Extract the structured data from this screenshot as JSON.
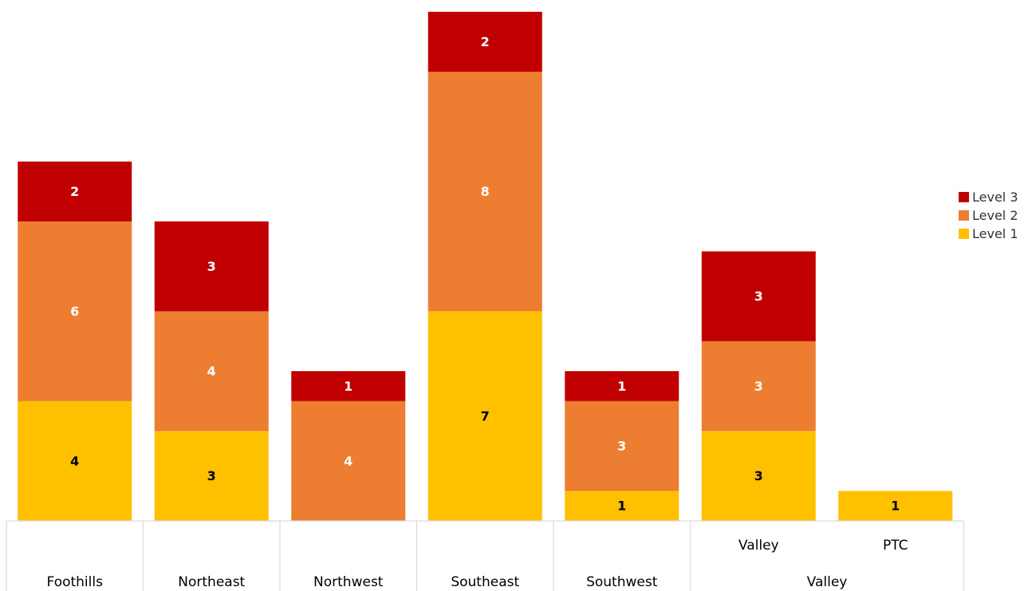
{
  "chart_data": {
    "type": "bar",
    "stacked": true,
    "title": "",
    "xlabel": "",
    "ylabel": "",
    "categories": [
      "Foothills",
      "Northeast",
      "Northwest",
      "Southeast",
      "Southwest",
      "Valley",
      "PTC"
    ],
    "group_labels": [
      {
        "label": "Foothills",
        "categories": [
          "Foothills"
        ]
      },
      {
        "label": "Northeast",
        "categories": [
          "Northeast"
        ]
      },
      {
        "label": "Northwest",
        "categories": [
          "Northwest"
        ]
      },
      {
        "label": "Southeast",
        "categories": [
          "Southeast"
        ]
      },
      {
        "label": "Southwest",
        "categories": [
          "Southwest"
        ]
      },
      {
        "label": "Valley",
        "categories": [
          "Valley",
          "PTC"
        ]
      }
    ],
    "series": [
      {
        "name": "Level 1",
        "color": "#FFC000",
        "label_color": "#000000",
        "values": [
          4,
          3,
          0,
          7,
          1,
          3,
          1
        ]
      },
      {
        "name": "Level 2",
        "color": "#ED7D31",
        "label_color": "#FFFFFF",
        "values": [
          6,
          4,
          4,
          8,
          3,
          3,
          0
        ]
      },
      {
        "name": "Level 3",
        "color": "#C00000",
        "label_color": "#FFFFFF",
        "values": [
          2,
          3,
          1,
          2,
          1,
          3,
          0
        ]
      }
    ],
    "ylim": [
      0,
      17
    ],
    "grid": false,
    "legend_position": "right"
  }
}
